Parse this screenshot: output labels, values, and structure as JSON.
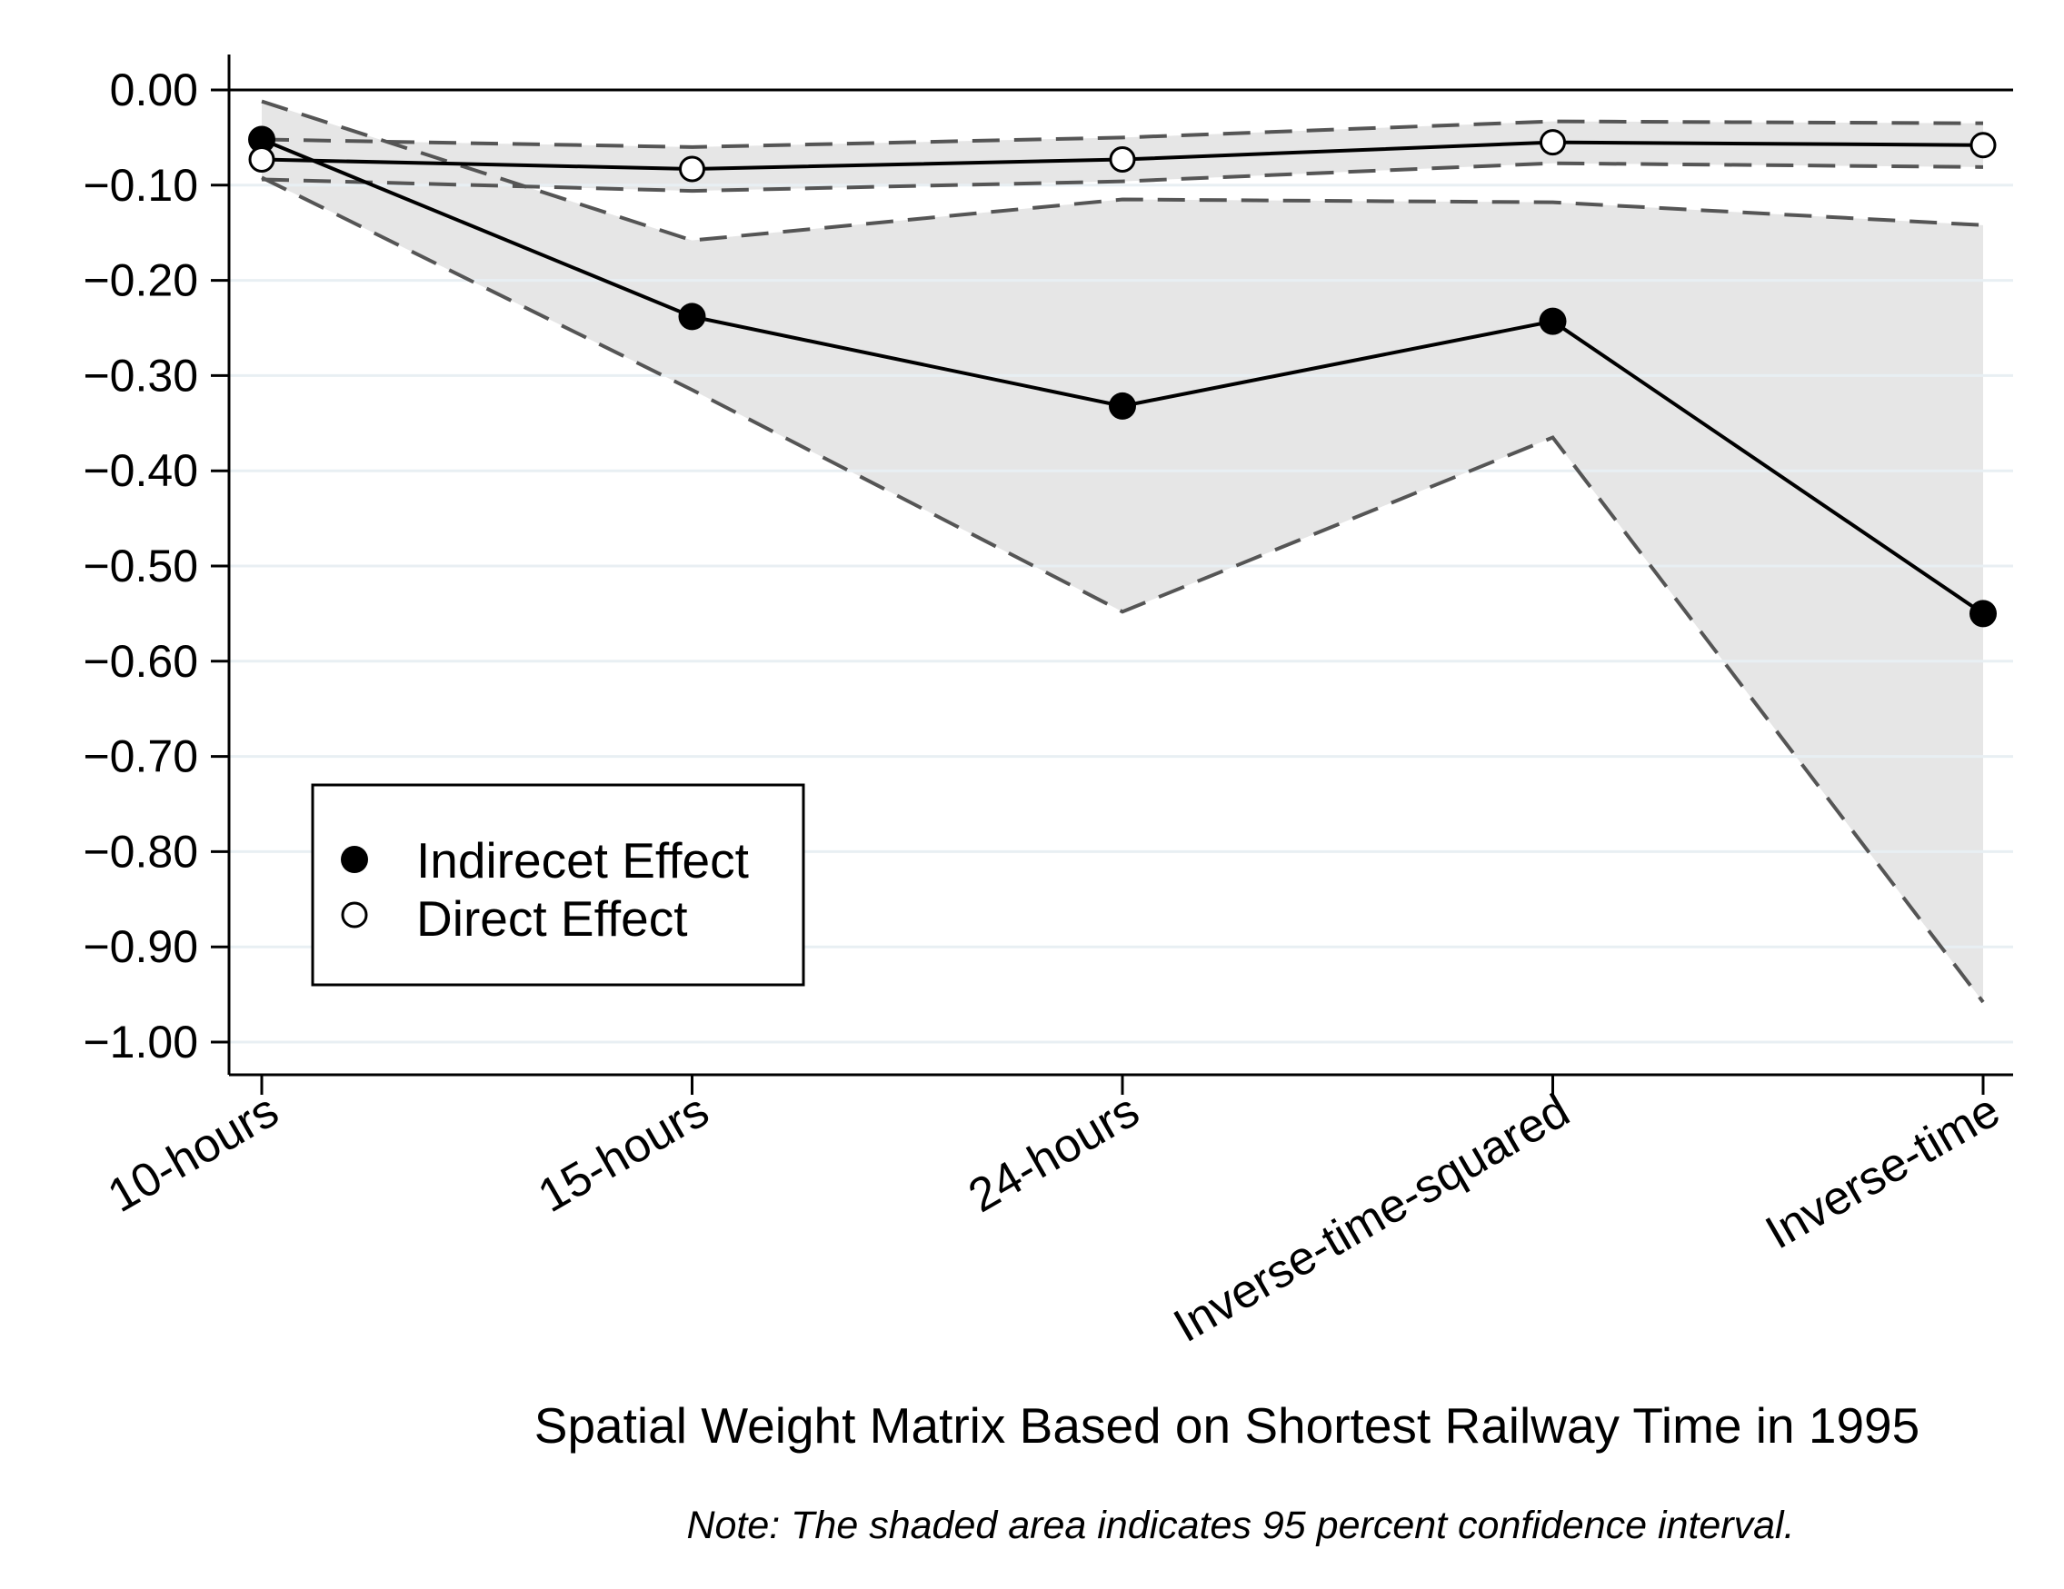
{
  "chart_data": {
    "type": "line",
    "categories": [
      "10-hours",
      "15-hours",
      "24-hours",
      "Inverse-time-squared",
      "Inverse-time"
    ],
    "series": [
      {
        "name": "Indirecet Effect",
        "marker": "filled-circle",
        "values": [
          -0.052,
          -0.238,
          -0.332,
          -0.243,
          -0.55
        ],
        "ci_upper": [
          -0.012,
          -0.158,
          -0.115,
          -0.118,
          -0.142
        ],
        "ci_lower": [
          -0.092,
          -0.315,
          -0.548,
          -0.365,
          -0.958
        ]
      },
      {
        "name": "Direct Effect",
        "marker": "hollow-circle",
        "values": [
          -0.073,
          -0.083,
          -0.073,
          -0.055,
          -0.058
        ],
        "ci_upper": [
          -0.052,
          -0.06,
          -0.05,
          -0.033,
          -0.035
        ],
        "ci_lower": [
          -0.094,
          -0.106,
          -0.096,
          -0.077,
          -0.081
        ]
      }
    ],
    "yticks": [
      "0.00",
      "−0.10",
      "−0.20",
      "−0.30",
      "−0.40",
      "−0.50",
      "−0.60",
      "−0.70",
      "−0.80",
      "−0.90",
      "−1.00"
    ],
    "ytick_values": [
      0,
      -0.1,
      -0.2,
      -0.3,
      -0.4,
      -0.5,
      -0.6,
      -0.7,
      -0.8,
      -0.9,
      -1.0
    ],
    "ylim": [
      -1.035,
      0.035
    ],
    "xlabel": "Spatial Weight Matrix Based on Shortest Railway Time in 1995",
    "note": "Note: The shaded area indicates 95 percent confidence interval.",
    "legend_position": "lower-left",
    "grid": true,
    "colors": {
      "shade": "#e6e6e6",
      "ci_line": "#555555",
      "grid": "#e8eff3",
      "line": "#000000"
    }
  }
}
